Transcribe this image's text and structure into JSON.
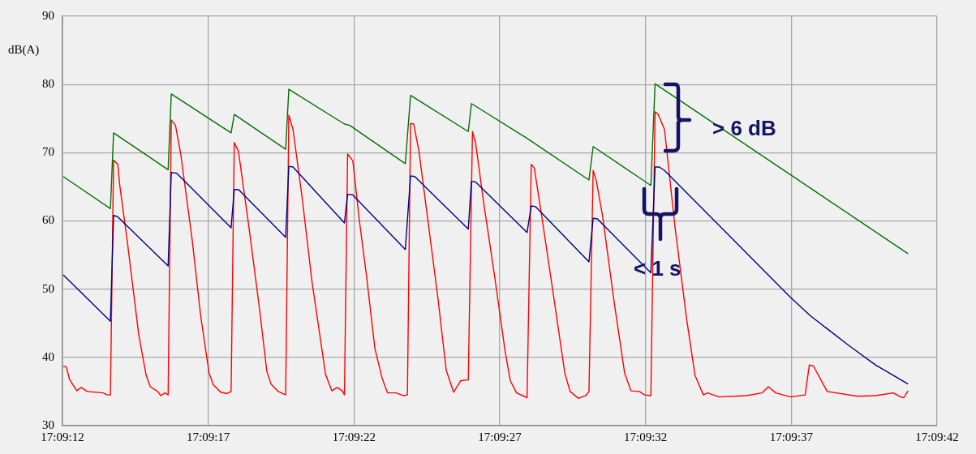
{
  "chart_data": {
    "type": "line",
    "ylabel": "dB(A)",
    "xlim": [
      17.153333,
      17.161667
    ],
    "xticks": [
      {
        "value": 17.153333,
        "label": "17:09:12"
      },
      {
        "value": 17.154722,
        "label": "17:09:17"
      },
      {
        "value": 17.156111,
        "label": "17:09:22"
      },
      {
        "value": 17.1575,
        "label": "17:09:27"
      },
      {
        "value": 17.158889,
        "label": "17:09:32"
      },
      {
        "value": 17.160278,
        "label": "17:09:37"
      },
      {
        "value": 17.161667,
        "label": "17:09:42"
      }
    ],
    "ylim": [
      30,
      90
    ],
    "yticks": [
      30,
      40,
      50,
      60,
      70,
      80,
      90
    ],
    "grid": true,
    "legend": false,
    "annotations": [
      "> 6 dB",
      "< 1 s"
    ],
    "series": [
      {
        "color": "#007000",
        "x": [
          17.15334,
          17.15379,
          17.15382,
          17.15434,
          17.15437,
          17.15494,
          17.15497,
          17.15546,
          17.15549,
          17.15602,
          17.15607,
          17.1566,
          17.15665,
          17.1572,
          17.15723,
          17.15776,
          17.15835,
          17.15839,
          17.15894,
          17.15898,
          17.16139
        ],
        "values": [
          66.5,
          61.8,
          72.9,
          67.5,
          78.6,
          72.9,
          75.6,
          70.5,
          79.3,
          74.2,
          74.0,
          68.4,
          78.4,
          73.1,
          77.2,
          72.1,
          66.0,
          70.9,
          65.2,
          80.1,
          55.2
        ]
      },
      {
        "color": "#000080",
        "x": [
          17.15334,
          17.15379,
          17.15382,
          17.15386,
          17.15434,
          17.15437,
          17.15442,
          17.15494,
          17.15497,
          17.15501,
          17.15546,
          17.15549,
          17.15553,
          17.15602,
          17.15605,
          17.1561,
          17.1566,
          17.15665,
          17.15669,
          17.1572,
          17.15723,
          17.15727,
          17.15776,
          17.1578,
          17.15784,
          17.15835,
          17.15839,
          17.15843,
          17.15894,
          17.15898,
          17.15902,
          17.15907,
          17.16027,
          17.16046,
          17.16083,
          17.16108,
          17.16139
        ],
        "values": [
          52.1,
          45.3,
          60.8,
          60.6,
          53.4,
          67.1,
          67.0,
          59.0,
          64.6,
          64.6,
          57.6,
          68.0,
          67.9,
          59.7,
          63.9,
          63.8,
          55.8,
          66.6,
          66.5,
          58.8,
          65.8,
          65.7,
          58.3,
          62.2,
          62.1,
          54.0,
          60.4,
          60.3,
          52.4,
          67.9,
          67.9,
          67.4,
          48.8,
          46.1,
          41.7,
          38.9,
          36.1
        ]
      },
      {
        "color": "#ff0000",
        "x": [
          17.15334,
          17.15337,
          17.1534,
          17.15347,
          17.15351,
          17.15357,
          17.15372,
          17.15376,
          17.15379,
          17.15382,
          17.15386,
          17.15388,
          17.15395,
          17.15406,
          17.15413,
          17.15417,
          17.15424,
          17.15427,
          17.15431,
          17.15434,
          17.15437,
          17.15441,
          17.15446,
          17.15457,
          17.15465,
          17.15473,
          17.15477,
          17.15484,
          17.1549,
          17.15494,
          17.15497,
          17.15501,
          17.15511,
          17.15521,
          17.15528,
          17.15532,
          17.15539,
          17.15546,
          17.15549,
          17.15553,
          17.15562,
          17.15571,
          17.15584,
          17.1559,
          17.15595,
          17.156,
          17.15602,
          17.15605,
          17.1561,
          17.15616,
          17.15623,
          17.15631,
          17.15638,
          17.15643,
          17.15651,
          17.15658,
          17.15662,
          17.15665,
          17.15668,
          17.15673,
          17.15681,
          17.15691,
          17.15699,
          17.15706,
          17.15713,
          17.1572,
          17.15724,
          17.15727,
          17.15735,
          17.15745,
          17.15755,
          17.1576,
          17.15766,
          17.15776,
          17.1578,
          17.15783,
          17.1579,
          17.15801,
          17.15812,
          17.15817,
          17.15825,
          17.15832,
          17.15835,
          17.15839,
          17.15842,
          17.15848,
          17.15859,
          17.15869,
          17.15875,
          17.15883,
          17.15888,
          17.15894,
          17.15898,
          17.15901,
          17.15907,
          17.15917,
          17.15928,
          17.15936,
          17.15944,
          17.15948,
          17.15959,
          17.15985,
          17.16,
          17.16006,
          17.16013,
          17.16027,
          17.16041,
          17.16045,
          17.16049,
          17.16062,
          17.16091,
          17.16108,
          17.16125,
          17.16132,
          17.16135,
          17.16139
        ],
        "values": [
          38.7,
          38.6,
          36.8,
          35.1,
          35.6,
          35.0,
          34.8,
          34.5,
          34.5,
          68.9,
          68.3,
          65.1,
          57.1,
          43.3,
          37.4,
          35.7,
          35.0,
          34.4,
          34.8,
          34.5,
          74.8,
          74.0,
          69.8,
          57.1,
          46.1,
          37.7,
          36.0,
          34.9,
          34.7,
          35.0,
          71.5,
          70.2,
          59.1,
          47.2,
          38.0,
          36.1,
          35.0,
          34.5,
          75.5,
          73.4,
          63.0,
          51.2,
          37.5,
          35.1,
          35.6,
          35.1,
          34.5,
          69.8,
          68.8,
          60.3,
          52.0,
          41.3,
          36.9,
          34.8,
          34.8,
          34.4,
          34.5,
          74.3,
          74.2,
          70.2,
          60.7,
          48.8,
          38.1,
          34.9,
          36.6,
          36.7,
          73.1,
          71.4,
          62.3,
          52.0,
          41.0,
          36.6,
          34.8,
          34.1,
          68.3,
          67.7,
          60.7,
          49.3,
          37.7,
          35.0,
          34.0,
          34.4,
          35.0,
          67.4,
          65.9,
          60.7,
          48.1,
          37.7,
          35.1,
          35.0,
          34.5,
          34.4,
          76.0,
          75.6,
          73.4,
          59.1,
          45.7,
          37.4,
          34.5,
          34.8,
          34.2,
          34.4,
          34.8,
          35.7,
          34.8,
          34.2,
          34.5,
          38.9,
          38.7,
          35.0,
          34.3,
          34.4,
          34.8,
          34.2,
          34.1,
          35.1
        ]
      }
    ]
  }
}
